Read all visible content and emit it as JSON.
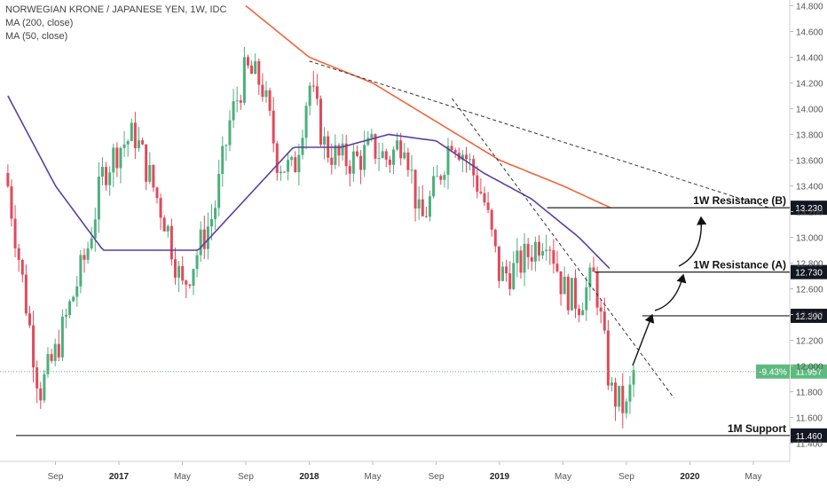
{
  "legend": {
    "symbol": "NORWEGIAN KRONE / JAPANESE YEN, 1W, IDC",
    "ma200": "MA (200, close)",
    "ma50": "MA (50, close)"
  },
  "colors": {
    "up": "#4caf7d",
    "down": "#e04a5a",
    "ma200": "#f2643a",
    "ma50": "#5b3fa3",
    "level": "#222222",
    "price_label": "#5dbb7f",
    "axis_text": "#555555"
  },
  "chart_data": {
    "type": "candlestick",
    "y_ticks": [
      "14.800",
      "14.600",
      "14.400",
      "14.200",
      "14.000",
      "13.800",
      "13.600",
      "13.400",
      "13.200",
      "13.000",
      "12.800",
      "12.600",
      "12.400",
      "12.200",
      "12.000",
      "11.800",
      "11.600",
      "11.400"
    ],
    "x_ticks": [
      "Sep",
      "2017",
      "May",
      "Sep",
      "2018",
      "May",
      "Sep",
      "2019",
      "May",
      "Sep",
      "2020",
      "May"
    ],
    "ylim": [
      11.3,
      14.9
    ],
    "levels": [
      {
        "name": "1W Resistance (B)",
        "value": "13.230"
      },
      {
        "name": "1W Resistance (A)",
        "value": "12.730"
      },
      {
        "name": "",
        "value": "12.390"
      },
      {
        "name": "1M Support",
        "value": "11.460"
      }
    ],
    "current": {
      "change": "-9.43%",
      "price": "11.957"
    },
    "close_path": [
      [
        "2016-06",
        13.4
      ],
      [
        "2016-07",
        12.6
      ],
      [
        "2016-08",
        11.8
      ],
      [
        "2016-09",
        12.1
      ],
      [
        "2016-10",
        12.5
      ],
      [
        "2016-11",
        12.9
      ],
      [
        "2016-12",
        13.5
      ],
      [
        "2017-01",
        13.7
      ],
      [
        "2017-02",
        13.8
      ],
      [
        "2017-03",
        13.45
      ],
      [
        "2017-04",
        13.1
      ],
      [
        "2017-05",
        12.6
      ],
      [
        "2017-06",
        12.9
      ],
      [
        "2017-07",
        13.2
      ],
      [
        "2017-08",
        13.9
      ],
      [
        "2017-09",
        14.3
      ],
      [
        "2017-10",
        14.2
      ],
      [
        "2017-11",
        13.6
      ],
      [
        "2017-12",
        13.5
      ],
      [
        "2018-01",
        14.2
      ],
      [
        "2018-02",
        13.7
      ],
      [
        "2018-03",
        13.6
      ],
      [
        "2018-04",
        13.6
      ],
      [
        "2018-05",
        13.7
      ],
      [
        "2018-06",
        13.6
      ],
      [
        "2018-07",
        13.8
      ],
      [
        "2018-08",
        13.1
      ],
      [
        "2018-09",
        13.4
      ],
      [
        "2018-10",
        13.8
      ],
      [
        "2018-11",
        13.6
      ],
      [
        "2018-12",
        13.3
      ],
      [
        "2019-01",
        12.7
      ],
      [
        "2019-02",
        12.75
      ],
      [
        "2019-03",
        12.9
      ],
      [
        "2019-04",
        13.05
      ],
      [
        "2019-05",
        12.6
      ],
      [
        "2019-06",
        12.5
      ],
      [
        "2019-07",
        12.7
      ],
      [
        "2019-08",
        11.8
      ],
      [
        "2019-09",
        11.65
      ],
      [
        "2019-09-15",
        11.96
      ]
    ],
    "ma50_path": [
      [
        "2016-06",
        14.1
      ],
      [
        "2016-09",
        13.4
      ],
      [
        "2016-12",
        12.9
      ],
      [
        "2017-03",
        12.9
      ],
      [
        "2017-06",
        12.9
      ],
      [
        "2017-09",
        13.3
      ],
      [
        "2017-12",
        13.7
      ],
      [
        "2018-03",
        13.7
      ],
      [
        "2018-06",
        13.8
      ],
      [
        "2018-09",
        13.75
      ],
      [
        "2018-12",
        13.5
      ],
      [
        "2019-03",
        13.3
      ],
      [
        "2019-06",
        13.0
      ],
      [
        "2019-08",
        12.75
      ]
    ],
    "ma200_path": [
      [
        "2017-09",
        14.8
      ],
      [
        "2018-01",
        14.4
      ],
      [
        "2018-05",
        14.2
      ],
      [
        "2018-09",
        13.9
      ],
      [
        "2019-01",
        13.6
      ],
      [
        "2019-05",
        13.4
      ],
      [
        "2019-08",
        13.23
      ]
    ],
    "trendlines": [
      {
        "from": [
          "2018-01",
          14.37
        ],
        "to": [
          "2020-06",
          13.23
        ]
      },
      {
        "from": [
          "2018-10",
          14.08
        ],
        "to": [
          "2019-12",
          11.75
        ]
      }
    ]
  }
}
